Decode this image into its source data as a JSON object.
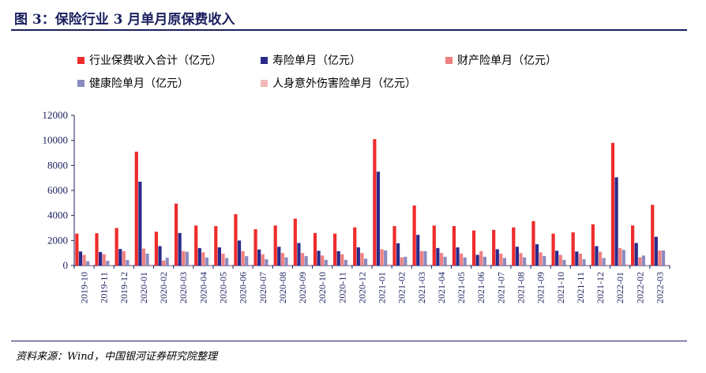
{
  "title": "图 3：保险行业 3 月单月原保费收入",
  "source": "资料来源：Wind，中国银河证券研究院整理",
  "chart_data": {
    "type": "bar",
    "categories": [
      "2019-10",
      "2019-11",
      "2019-12",
      "2020-01",
      "2020-02",
      "2020-03",
      "2020-04",
      "2020-05",
      "2020-06",
      "2020-07",
      "2020-08",
      "2020-09",
      "2020-10",
      "2020-11",
      "2020-12",
      "2021-01",
      "2021-02",
      "2021-03",
      "2021-04",
      "2021-05",
      "2021-06",
      "2021-07",
      "2021-08",
      "2021-09",
      "2021-10",
      "2021-11",
      "2021-12",
      "2022-01",
      "2022-02",
      "2022-03"
    ],
    "series": [
      {
        "name": "行业保费收入合计（亿元）",
        "color": "#ee2c2c",
        "values": [
          2550,
          2580,
          3000,
          9100,
          2700,
          4950,
          3200,
          3150,
          4100,
          2900,
          3200,
          3750,
          2600,
          2550,
          3050,
          10100,
          3150,
          4800,
          3200,
          3150,
          2800,
          2850,
          3050,
          3550,
          2550,
          2650,
          3300,
          9800,
          3200,
          4850
        ]
      },
      {
        "name": "寿险单月（亿元）",
        "color": "#2a2a8c",
        "values": [
          1120,
          1080,
          1320,
          6700,
          1550,
          2600,
          1400,
          1450,
          2000,
          1280,
          1500,
          1800,
          1180,
          1150,
          1450,
          7500,
          1780,
          2450,
          1400,
          1450,
          850,
          1300,
          1500,
          1700,
          1180,
          1120,
          1550,
          7050,
          1800,
          2300
        ]
      },
      {
        "name": "财产险单月（亿元）",
        "color": "#f08080",
        "values": [
          850,
          900,
          1150,
          1350,
          400,
          1150,
          1050,
          950,
          1150,
          900,
          1000,
          1000,
          800,
          900,
          1000,
          1300,
          650,
          1150,
          1000,
          950,
          1150,
          950,
          1000,
          1050,
          850,
          950,
          1100,
          1400,
          650,
          1200
        ]
      },
      {
        "name": "健康险单月（亿元）",
        "color": "#8b8bc0",
        "values": [
          350,
          380,
          450,
          950,
          620,
          1100,
          650,
          600,
          750,
          500,
          650,
          750,
          450,
          450,
          550,
          1200,
          700,
          1150,
          700,
          650,
          700,
          600,
          650,
          750,
          450,
          500,
          600,
          1250,
          800,
          1200
        ]
      },
      {
        "name": "人身意外伤害险单月（亿元）",
        "color": "#f2b8b8",
        "values": [
          60,
          60,
          70,
          100,
          40,
          80,
          70,
          70,
          80,
          70,
          80,
          80,
          60,
          60,
          70,
          110,
          50,
          90,
          70,
          70,
          80,
          70,
          70,
          70,
          60,
          60,
          60,
          110,
          40,
          80
        ]
      }
    ],
    "ylim": [
      0,
      12000
    ],
    "yticks": [
      "12000",
      "10000",
      "8000",
      "6000",
      "4000",
      "2000",
      "0"
    ],
    "grid": false,
    "legend_position": "top"
  }
}
